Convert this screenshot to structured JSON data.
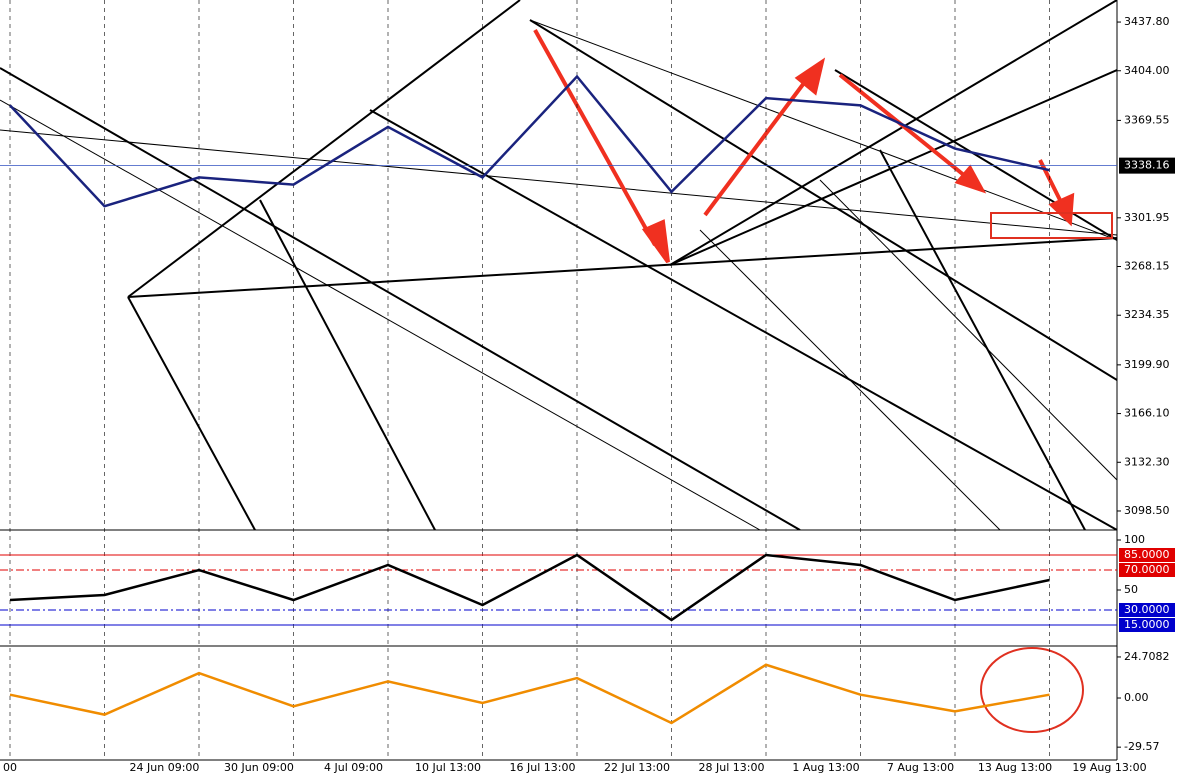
{
  "chart_data": [
    {
      "type": "line",
      "color": "#1a237e",
      "categories": [
        "00",
        "24 Jun 09:00",
        "30 Jun 09:00",
        "4 Jul 09:00",
        "10 Jul 13:00",
        "16 Jul 13:00",
        "22 Jul 13:00",
        "28 Jul 13:00",
        "1 Aug 13:00",
        "7 Aug 13:00",
        "13 Aug 13:00",
        "19 Aug 13:00"
      ],
      "values": [
        3380,
        3310,
        3330,
        3325,
        3365,
        3330,
        3400,
        3320,
        3385,
        3380,
        3350,
        3335
      ],
      "ylim": [
        3085.3,
        3453.1
      ],
      "yticks": [
        {
          "value": 3437.8,
          "label": "3437.80"
        },
        {
          "value": 3404,
          "label": "3404.00"
        },
        {
          "value": 3369.55,
          "label": "3369.55"
        },
        {
          "value": 3301.95,
          "label": "3301.95"
        },
        {
          "value": 3268.15,
          "label": "3268.15"
        },
        {
          "value": 3234.35,
          "label": "3234.35"
        },
        {
          "value": 3199.9,
          "label": "3199.90"
        },
        {
          "value": 3166.1,
          "label": "3166.10"
        },
        {
          "value": 3132.3,
          "label": "3132.30"
        },
        {
          "value": 3098.5,
          "label": "3098.50"
        }
      ],
      "last_price": {
        "value": 3338.16,
        "label": "3338.16"
      }
    },
    {
      "type": "line",
      "color": "#000000",
      "values": [
        40,
        45,
        70,
        40,
        75,
        35,
        85,
        20,
        85,
        75,
        40,
        60
      ],
      "ylim": [
        -5,
        109
      ],
      "yticks": [
        100,
        50
      ],
      "levels": [
        {
          "value": 85,
          "label": "85.0000",
          "color": "#e00000"
        },
        {
          "value": 70,
          "label": "70.0000",
          "color": "#e00000"
        },
        {
          "value": 30,
          "label": "30.0000",
          "color": "#0000cc"
        },
        {
          "value": 15,
          "label": "15.0000",
          "color": "#0000cc"
        }
      ]
    },
    {
      "type": "line",
      "color": "#f08c00",
      "values": [
        2,
        -10,
        15,
        -5,
        10,
        -3,
        12,
        -15,
        20,
        2,
        -8,
        2
      ],
      "ylim": [
        -37.3,
        30.7
      ],
      "yticks": [
        {
          "value": 24.7082,
          "label": "24.7082"
        },
        {
          "value": 0,
          "label": "0.00"
        },
        {
          "value": -29.57,
          "label": "-29.57"
        }
      ]
    }
  ]
}
